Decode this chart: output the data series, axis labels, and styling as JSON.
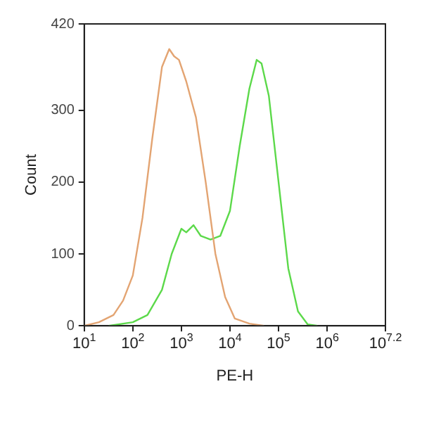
{
  "chart_data": {
    "type": "line",
    "xlabel": "PE-H",
    "ylabel": "Count",
    "log": "x",
    "grid": false,
    "marker": "none",
    "line_style": "solid",
    "xlim": [
      10,
      15848932
    ],
    "xticks": [
      {
        "value": 10,
        "label": "10$^{1}$"
      },
      {
        "value": 100,
        "label": "10$^{2}$"
      },
      {
        "value": 1000,
        "label": "10$^{3}$"
      },
      {
        "value": 10000,
        "label": "10$^{4}$"
      },
      {
        "value": 100000,
        "label": "10$^{5}$"
      },
      {
        "value": 1000000,
        "label": "10$^{6}$"
      },
      {
        "value": 15848932,
        "label": "10$^{7.2}$"
      }
    ],
    "ylim": [
      0,
      420
    ],
    "yticks": [
      0,
      100,
      200,
      300,
      420
    ],
    "series": [
      {
        "color": "#e3a472",
        "x": [
          10,
          20,
          40,
          63,
          100,
          158,
          251,
          398,
          562,
          708,
          891,
          1259,
          1995,
          3162,
          5012,
          7943,
          12589,
          25119,
          50119
        ],
        "values": [
          0,
          5,
          15,
          35,
          70,
          150,
          260,
          360,
          385,
          375,
          370,
          340,
          290,
          200,
          100,
          40,
          10,
          3,
          0
        ]
      },
      {
        "color": "#5cd94a",
        "x": [
          32,
          100,
          200,
          398,
          631,
          1000,
          1259,
          1778,
          2512,
          3981,
          6310,
          10000,
          15849,
          25119,
          35481,
          44668,
          63096,
          100000,
          158489,
          251189,
          398107,
          630957
        ],
        "values": [
          0,
          5,
          15,
          50,
          100,
          135,
          130,
          140,
          125,
          120,
          125,
          160,
          250,
          330,
          370,
          365,
          320,
          200,
          80,
          20,
          2,
          0
        ]
      }
    ]
  }
}
